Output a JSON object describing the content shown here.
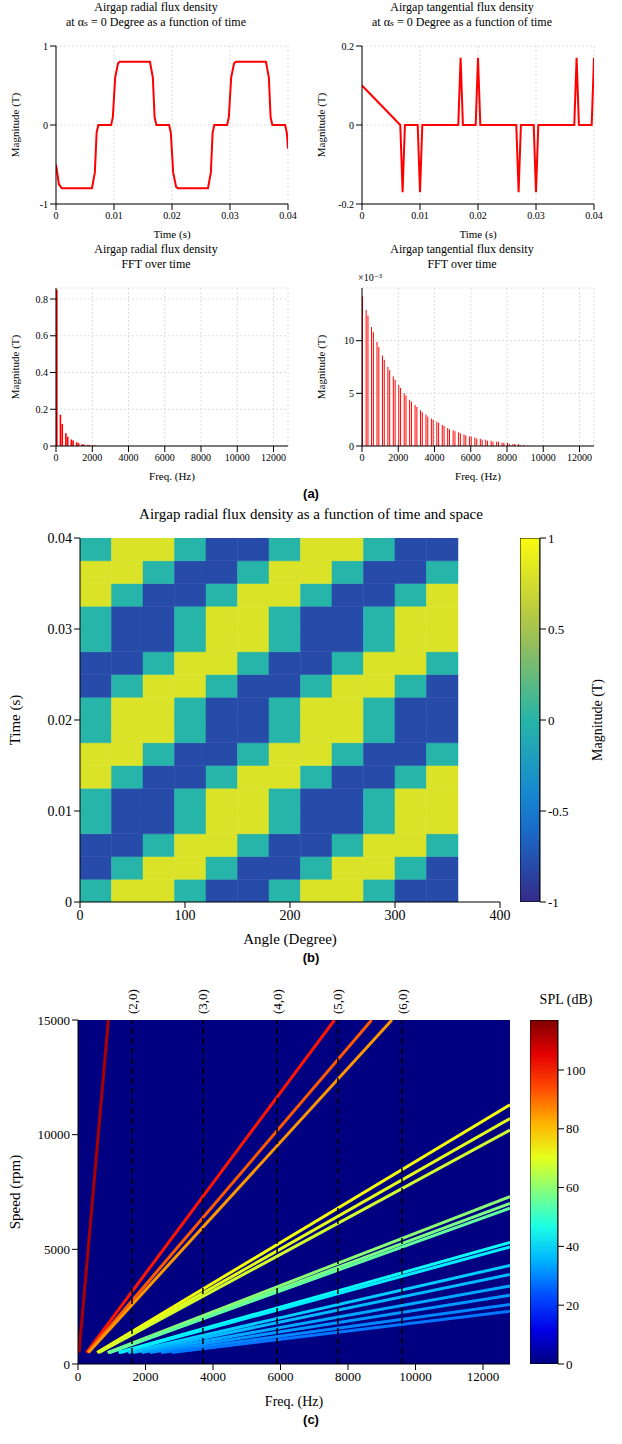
{
  "chart_data": [
    {
      "type": "line",
      "panel": "(a)",
      "title": "Airgap radial flux density\nat αₛ = 0  Degree as a function of time",
      "xlabel": "Time (s)",
      "ylabel": "Magnitude (T)",
      "color": "#ff0000",
      "grid": true,
      "x": [
        0,
        0.0005,
        0.001,
        0.0062,
        0.0067,
        0.007,
        0.0073,
        0.0095,
        0.0098,
        0.0102,
        0.0107,
        0.011,
        0.0162,
        0.0167,
        0.017,
        0.0173,
        0.0195,
        0.0198,
        0.0202,
        0.0207,
        0.021,
        0.0262,
        0.0267,
        0.027,
        0.0273,
        0.0295,
        0.0298,
        0.0302,
        0.0307,
        0.031,
        0.0362,
        0.0367,
        0.037,
        0.0373,
        0.0395,
        0.0398,
        0.04
      ],
      "values": [
        -0.5,
        -0.75,
        -0.8,
        -0.8,
        -0.6,
        -0.1,
        0,
        0,
        0.1,
        0.6,
        0.78,
        0.8,
        0.8,
        0.6,
        0.1,
        0,
        0,
        -0.1,
        -0.6,
        -0.78,
        -0.8,
        -0.8,
        -0.6,
        -0.1,
        0,
        0,
        0.1,
        0.6,
        0.78,
        0.8,
        0.8,
        0.6,
        0.1,
        0,
        0,
        -0.1,
        -0.3
      ],
      "xlim": [
        0,
        0.04
      ],
      "xticks": [
        0,
        0.01,
        0.02,
        0.03,
        0.04
      ],
      "ylim": [
        -1,
        1
      ],
      "yticks": [
        -1,
        0,
        1
      ]
    },
    {
      "type": "line",
      "panel": "(a)",
      "title": "Airgap tangential flux density\nat αₛ = 0  Degree as a function of time",
      "xlabel": "Time (s)",
      "ylabel": "Magnitude (T)",
      "color": "#ff0000",
      "grid": true,
      "x": [
        0,
        0.0066,
        0.007,
        0.0074,
        0.0096,
        0.01,
        0.0104,
        0.0166,
        0.017,
        0.0174,
        0.0196,
        0.02,
        0.0204,
        0.0266,
        0.027,
        0.0274,
        0.0296,
        0.03,
        0.0304,
        0.0366,
        0.037,
        0.0374,
        0.0396,
        0.04
      ],
      "values": [
        0.1,
        0,
        -0.17,
        0,
        0,
        -0.17,
        0,
        0,
        0.17,
        0,
        0,
        0.17,
        0,
        0,
        -0.17,
        0,
        0,
        -0.17,
        0,
        0,
        0.17,
        0,
        0,
        0.17
      ],
      "xlim": [
        0,
        0.04
      ],
      "xticks": [
        0,
        0.01,
        0.02,
        0.03,
        0.04
      ],
      "ylim": [
        -0.2,
        0.2
      ],
      "yticks": [
        -0.2,
        0,
        0.2
      ]
    },
    {
      "type": "bar",
      "panel": "(a)",
      "title": "Airgap radial flux density\nFFT over time",
      "xlabel": "Freq. (Hz)",
      "ylabel": "Magnitude (T)",
      "color": "#ff0000",
      "grid": true,
      "x": [
        50,
        250,
        350,
        550,
        650,
        850,
        950,
        1150,
        1250,
        1450,
        1550,
        1750,
        1850,
        2050,
        2150
      ],
      "values": [
        0.85,
        0.17,
        0.12,
        0.07,
        0.05,
        0.035,
        0.03,
        0.02,
        0.015,
        0.01,
        0.008,
        0.006,
        0.005,
        0.003,
        0.003
      ],
      "xlim": [
        0,
        12800
      ],
      "xticks": [
        0,
        2000,
        4000,
        6000,
        8000,
        10000,
        12000
      ],
      "ylim": [
        0,
        0.86
      ],
      "yticks": [
        0,
        0.2,
        0.4,
        0.6,
        0.8
      ]
    },
    {
      "type": "bar",
      "panel": "(a)",
      "title": "Airgap tangential flux density\nFFT over time",
      "xlabel": "Freq. (Hz)",
      "ylabel": "Magnitude (T)",
      "color": "#ff0000",
      "grid": true,
      "annotations": [
        "×10⁻³"
      ],
      "x": [
        50,
        250,
        350,
        550,
        650,
        850,
        950,
        1150,
        1250,
        1450,
        1550,
        1750,
        1850,
        2050,
        2150,
        2350,
        2450,
        2650,
        2750,
        2950,
        3050,
        3250,
        3350,
        3550,
        3650,
        3850,
        3950,
        4150,
        4250,
        4450,
        4550,
        4750,
        4850,
        5050,
        5150,
        5350,
        5450,
        5650,
        5750,
        5950,
        6050,
        6250,
        6350,
        6550,
        6650,
        6850,
        6950,
        7150,
        7250,
        7450,
        7550,
        7750,
        7850,
        8050,
        8150,
        8350,
        8450,
        8650,
        8750,
        8950
      ],
      "values": [
        0.0142,
        0.0129,
        0.0124,
        0.0113,
        0.0108,
        0.0099,
        0.0094,
        0.0086,
        0.0082,
        0.0075,
        0.0072,
        0.0066,
        0.0063,
        0.0058,
        0.0055,
        0.005,
        0.0048,
        0.0044,
        0.0042,
        0.0039,
        0.0037,
        0.0034,
        0.0032,
        0.003,
        0.0028,
        0.0026,
        0.0025,
        0.0023,
        0.0022,
        0.002,
        0.0019,
        0.0017,
        0.0016,
        0.0015,
        0.0014,
        0.0013,
        0.0012,
        0.0011,
        0.001,
        0.0009,
        0.0009,
        0.0008,
        0.0007,
        0.0007,
        0.0006,
        0.0006,
        0.0005,
        0.0005,
        0.0004,
        0.0004,
        0.0004,
        0.0003,
        0.0003,
        0.0003,
        0.0002,
        0.0002,
        0.0002,
        0.0002,
        0.0001,
        0.0001
      ],
      "xlim": [
        0,
        12800
      ],
      "xticks": [
        0,
        2000,
        4000,
        6000,
        8000,
        10000,
        12000
      ],
      "ylim": [
        0,
        0.015
      ],
      "yticks": [
        0,
        {
          "value": 0.005,
          "label": "5"
        },
        {
          "value": 0.01,
          "label": "10"
        }
      ]
    },
    {
      "type": "heatmap",
      "panel": "(b)",
      "title": "Airgap radial flux density as a function of time and space",
      "xlabel": "Angle (Degree)",
      "ylabel": "Time (s)",
      "x": [
        15,
        45,
        75,
        105,
        135,
        165,
        195,
        225,
        255,
        285,
        315,
        345
      ],
      "y": [
        0.00125,
        0.00375,
        0.00625,
        0.00875,
        0.01125,
        0.01375,
        0.01625,
        0.01875,
        0.02125,
        0.02375,
        0.02625,
        0.02875,
        0.03125,
        0.03375,
        0.03625,
        0.03875
      ],
      "cells": [
        [
          0,
          0.8,
          0.8,
          0,
          -0.8,
          -0.8,
          0,
          0.8,
          0.8,
          0,
          -0.8,
          -0.8
        ],
        [
          -0.8,
          0,
          0.8,
          0.8,
          0,
          -0.8,
          -0.8,
          0,
          0.8,
          0.8,
          0,
          -0.8
        ],
        [
          -0.8,
          -0.8,
          0,
          0.8,
          0.8,
          0,
          -0.8,
          -0.8,
          0,
          0.8,
          0.8,
          0
        ],
        [
          0,
          -0.8,
          -0.8,
          0,
          0.8,
          0.8,
          0,
          -0.8,
          -0.8,
          0,
          0.8,
          0.8
        ],
        [
          0,
          -0.8,
          -0.8,
          0,
          0.8,
          0.8,
          0,
          -0.8,
          -0.8,
          0,
          0.8,
          0.8
        ],
        [
          0.8,
          0,
          -0.8,
          -0.8,
          0,
          0.8,
          0.8,
          0,
          -0.8,
          -0.8,
          0,
          0.8
        ],
        [
          0.8,
          0.8,
          0,
          -0.8,
          -0.8,
          0,
          0.8,
          0.8,
          0,
          -0.8,
          -0.8,
          0
        ],
        [
          0,
          0.8,
          0.8,
          0,
          -0.8,
          -0.8,
          0,
          0.8,
          0.8,
          0,
          -0.8,
          -0.8
        ],
        [
          0,
          0.8,
          0.8,
          0,
          -0.8,
          -0.8,
          0,
          0.8,
          0.8,
          0,
          -0.8,
          -0.8
        ],
        [
          -0.8,
          0,
          0.8,
          0.8,
          0,
          -0.8,
          -0.8,
          0,
          0.8,
          0.8,
          0,
          -0.8
        ],
        [
          -0.8,
          -0.8,
          0,
          0.8,
          0.8,
          0,
          -0.8,
          -0.8,
          0,
          0.8,
          0.8,
          0
        ],
        [
          0,
          -0.8,
          -0.8,
          0,
          0.8,
          0.8,
          0,
          -0.8,
          -0.8,
          0,
          0.8,
          0.8
        ],
        [
          0,
          -0.8,
          -0.8,
          0,
          0.8,
          0.8,
          0,
          -0.8,
          -0.8,
          0,
          0.8,
          0.8
        ],
        [
          0.8,
          0,
          -0.8,
          -0.8,
          0,
          0.8,
          0.8,
          0,
          -0.8,
          -0.8,
          0,
          0.8
        ],
        [
          0.8,
          0.8,
          0,
          -0.8,
          -0.8,
          0,
          0.8,
          0.8,
          0,
          -0.8,
          -0.8,
          0
        ],
        [
          0,
          0.8,
          0.8,
          0,
          -0.8,
          -0.8,
          0,
          0.8,
          0.8,
          0,
          -0.8,
          -0.8
        ]
      ],
      "xlim": [
        0,
        400
      ],
      "xticks": [
        0,
        100,
        200,
        300,
        400
      ],
      "ylim": [
        0,
        0.04
      ],
      "yticks": [
        0,
        0.01,
        0.02,
        0.03,
        0.04
      ],
      "colorbar": {
        "label": "Magnitude (T)",
        "range": [
          -1,
          1
        ],
        "ticks": [
          -1,
          -0.5,
          0,
          0.5,
          1
        ]
      }
    },
    {
      "type": "line",
      "panel": "(c)",
      "xlabel": "Freq. (Hz)",
      "ylabel": "Speed (rpm)",
      "xlim": [
        0,
        12800
      ],
      "xticks": [
        0,
        2000,
        4000,
        6000,
        8000,
        10000,
        12000
      ],
      "ylim": [
        0,
        15000
      ],
      "yticks": [
        0,
        5000,
        10000,
        15000
      ],
      "series": [
        {
          "x": [
            30,
            900
          ],
          "values": [
            500,
            15000
          ],
          "spl": 112
        },
        {
          "x": [
            253,
            7600
          ],
          "values": [
            500,
            15000
          ],
          "spl": 100
        },
        {
          "x": [
            290,
            8700
          ],
          "values": [
            500,
            15000
          ],
          "spl": 92
        },
        {
          "x": [
            310,
            9300
          ],
          "values": [
            500,
            15000
          ],
          "spl": 85
        },
        {
          "x": [
            566,
            12800
          ],
          "values": [
            500,
            11300
          ],
          "spl": 72
        },
        {
          "x": [
            598,
            12800
          ],
          "values": [
            500,
            10700
          ],
          "spl": 70
        },
        {
          "x": [
            627,
            12800
          ],
          "values": [
            500,
            10200
          ],
          "spl": 68
        },
        {
          "x": [
            877,
            12800
          ],
          "values": [
            500,
            7300
          ],
          "spl": 60
        },
        {
          "x": [
            914,
            12800
          ],
          "values": [
            500,
            7000
          ],
          "spl": 58
        },
        {
          "x": [
            941,
            12800
          ],
          "values": [
            500,
            6800
          ],
          "spl": 55
        },
        {
          "x": [
            1208,
            12800
          ],
          "values": [
            500,
            5300
          ],
          "spl": 45
        },
        {
          "x": [
            1255,
            12800
          ],
          "values": [
            500,
            5100
          ],
          "spl": 42
        },
        {
          "x": [
            1488,
            12800
          ],
          "values": [
            500,
            4300
          ],
          "spl": 38
        },
        {
          "x": [
            1641,
            12800
          ],
          "values": [
            500,
            3900
          ],
          "spl": 36
        },
        {
          "x": [
            1882,
            12800
          ],
          "values": [
            500,
            3400
          ],
          "spl": 34
        },
        {
          "x": [
            2133,
            12800
          ],
          "values": [
            500,
            3000
          ],
          "spl": 32
        },
        {
          "x": [
            2462,
            12800
          ],
          "values": [
            500,
            2600
          ],
          "spl": 30
        },
        {
          "x": [
            2783,
            12800
          ],
          "values": [
            500,
            2300
          ],
          "spl": 28
        }
      ],
      "modes": [
        {
          "x": 1600,
          "label": "(2,0)"
        },
        {
          "x": 3700,
          "label": "(3,0)"
        },
        {
          "x": 5900,
          "label": "(4,0)"
        },
        {
          "x": 7700,
          "label": "(5,0)"
        },
        {
          "x": 9600,
          "label": "(6,0)"
        }
      ],
      "colorbar": {
        "label": "SPL (dB)",
        "range": [
          0,
          117
        ],
        "ticks": [
          0,
          20,
          40,
          60,
          80,
          100
        ]
      }
    }
  ]
}
